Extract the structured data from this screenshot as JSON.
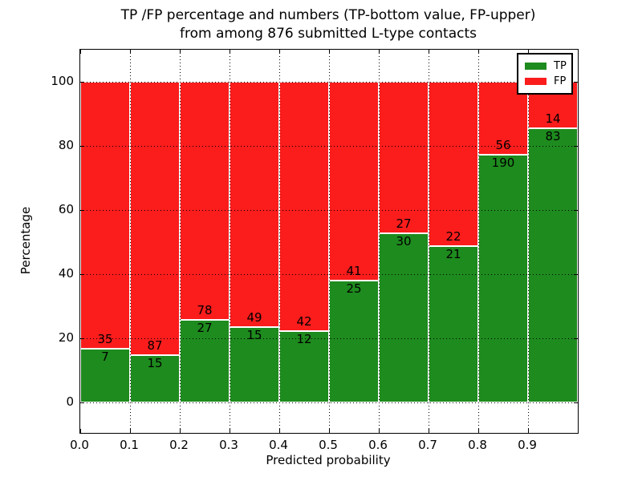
{
  "chart_data": {
    "type": "bar",
    "stacked": true,
    "units": "percent",
    "title_line1": "TP /FP percentage and numbers (TP-bottom value, FP-upper)",
    "title_line2": "from among 876 submitted L-type contacts",
    "title": "TP /FP percentage and numbers (TP-bottom value, FP-upper)\nfrom among 876 submitted L-type contacts",
    "xlabel": "Predicted probability",
    "ylabel": "Percentage",
    "total_contacts": 876,
    "bin_starts": [
      0.0,
      0.1,
      0.2,
      0.3,
      0.4,
      0.5,
      0.6,
      0.7,
      0.8,
      0.9
    ],
    "bin_width": 0.1,
    "series": [
      {
        "name": "TP",
        "color": "#1e8b1e",
        "counts": [
          7,
          15,
          27,
          15,
          12,
          25,
          30,
          21,
          190,
          83
        ],
        "percent": [
          16.67,
          14.71,
          25.71,
          23.44,
          22.22,
          37.88,
          52.63,
          48.84,
          77.24,
          85.57
        ]
      },
      {
        "name": "FP",
        "color": "#fb1c1c",
        "counts": [
          35,
          87,
          78,
          49,
          42,
          41,
          27,
          22,
          56,
          14
        ],
        "percent": [
          83.33,
          85.29,
          74.29,
          76.56,
          77.78,
          62.12,
          47.37,
          51.16,
          22.76,
          14.43
        ]
      }
    ],
    "xticks": [
      "0.0",
      "0.1",
      "0.2",
      "0.3",
      "0.4",
      "0.5",
      "0.6",
      "0.7",
      "0.8",
      "0.9"
    ],
    "yticks": [
      0,
      20,
      40,
      60,
      80,
      100
    ],
    "xlim": [
      0.0,
      1.0
    ],
    "ylim": [
      -9.5,
      110
    ],
    "grid": "dotted",
    "bar_edge_color": "#ffffff",
    "legend": {
      "position": "upper right",
      "entries": [
        {
          "label": "TP",
          "color": "#1e8b1e"
        },
        {
          "label": "FP",
          "color": "#fb1c1c"
        }
      ]
    }
  }
}
